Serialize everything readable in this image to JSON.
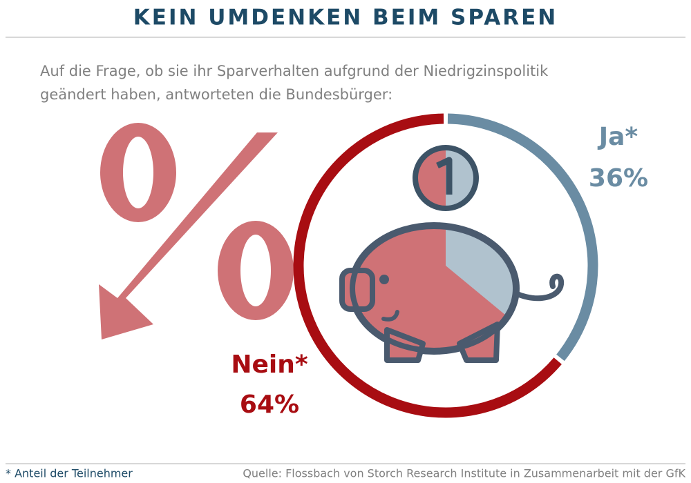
{
  "chart_data": {
    "type": "pie",
    "title": "KEIN UMDENKEN BEIM SPAREN",
    "subtitle": [
      "Auf die Frage, ob sie ihr Sparverhalten aufgrund der Niedrigzinspolitik",
      "geändert haben, antworteten die Bundesbürger:"
    ],
    "categories": [
      "Ja*",
      "Nein*"
    ],
    "values": [
      36,
      64
    ],
    "value_labels": [
      "36%",
      "64%"
    ],
    "colors": [
      "#6a8ca3",
      "#a80d12"
    ],
    "note": "* Anteil der Teilnehmer",
    "source": "Quelle: Flossbach von Storch Research Institute in Zusammenarbeit mit der GfK"
  }
}
